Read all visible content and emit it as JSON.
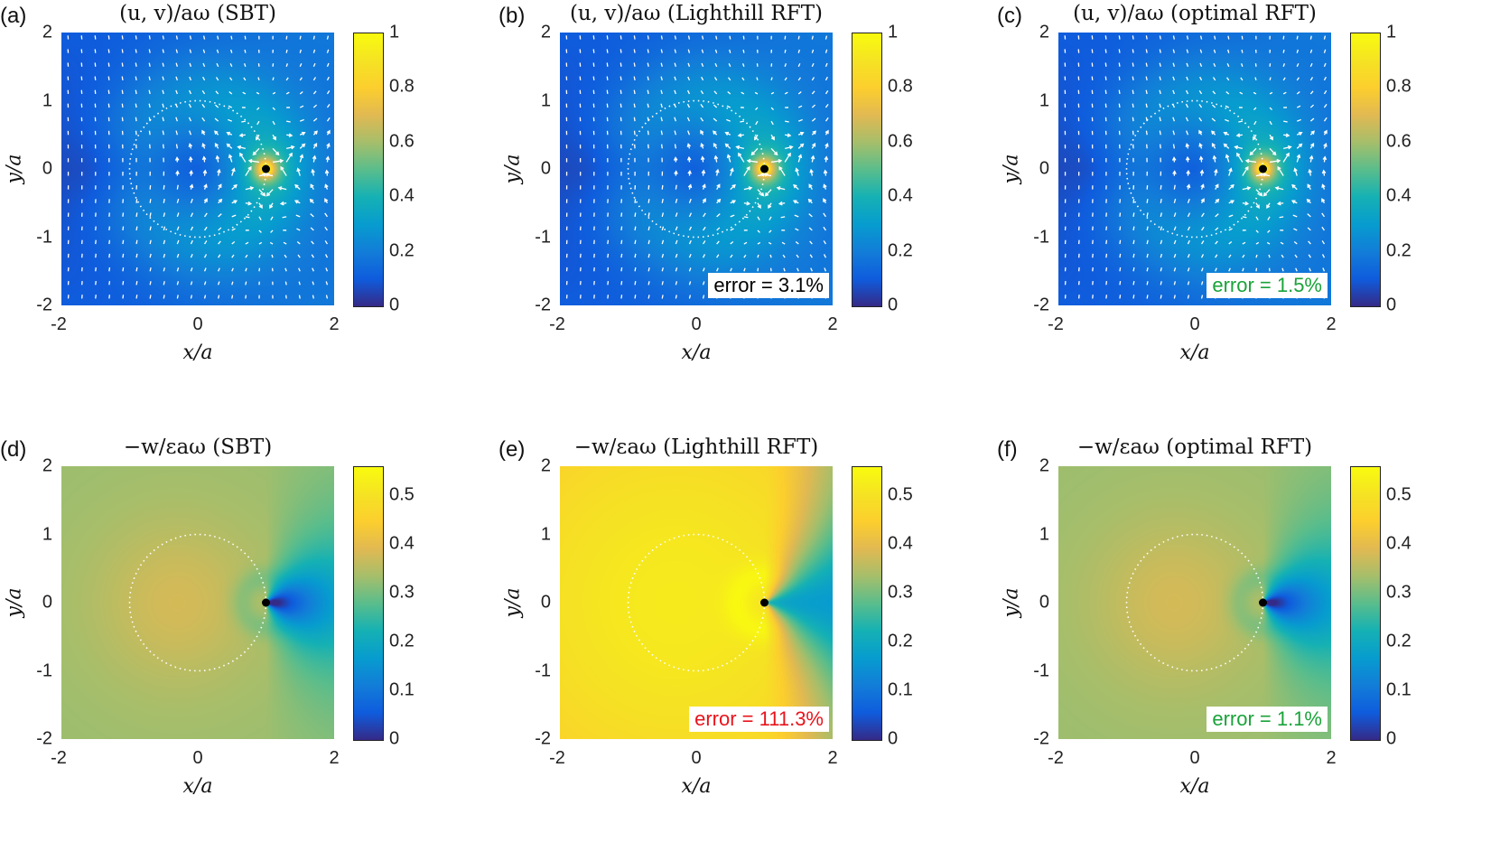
{
  "chart_data": [
    {
      "id": "a",
      "type": "heatmap",
      "letter": "(a)",
      "title": "(u, v)/aω (SBT)",
      "xlabel": "x/a",
      "ylabel": "y/a",
      "xlim": [
        -2,
        2
      ],
      "ylim": [
        -2,
        2
      ],
      "xticks": [
        "-2",
        "0",
        "2"
      ],
      "yticks": [
        "2",
        "1",
        "0",
        "-1",
        "-2"
      ],
      "colorbar": {
        "min": 0,
        "max": 1,
        "ticks": [
          "1",
          "0.8",
          "0.6",
          "0.4",
          "0.2",
          "0"
        ]
      },
      "field": "velocity",
      "quiver": true,
      "singular_point": [
        1,
        0
      ],
      "dotted_circle": {
        "center": [
          0,
          0
        ],
        "radius": 1
      },
      "error_label": null
    },
    {
      "id": "b",
      "type": "heatmap",
      "letter": "(b)",
      "title": "(u, v)/aω (Lighthill RFT)",
      "xlabel": "x/a",
      "ylabel": "y/a",
      "xlim": [
        -2,
        2
      ],
      "ylim": [
        -2,
        2
      ],
      "xticks": [
        "-2",
        "0",
        "2"
      ],
      "yticks": [
        "2",
        "1",
        "0",
        "-1",
        "-2"
      ],
      "colorbar": {
        "min": 0,
        "max": 1,
        "ticks": [
          "1",
          "0.8",
          "0.6",
          "0.4",
          "0.2",
          "0"
        ]
      },
      "field": "velocity",
      "quiver": true,
      "singular_point": [
        1,
        0
      ],
      "dotted_circle": {
        "center": [
          0,
          0
        ],
        "radius": 1
      },
      "error_label": "error = 3.1%",
      "error_color": "#000000"
    },
    {
      "id": "c",
      "type": "heatmap",
      "letter": "(c)",
      "title": "(u, v)/aω (optimal RFT)",
      "xlabel": "x/a",
      "ylabel": "y/a",
      "xlim": [
        -2,
        2
      ],
      "ylim": [
        -2,
        2
      ],
      "xticks": [
        "-2",
        "0",
        "2"
      ],
      "yticks": [
        "2",
        "1",
        "0",
        "-1",
        "-2"
      ],
      "colorbar": {
        "min": 0,
        "max": 1,
        "ticks": [
          "1",
          "0.8",
          "0.6",
          "0.4",
          "0.2",
          "0"
        ]
      },
      "field": "velocity",
      "quiver": true,
      "singular_point": [
        1,
        0
      ],
      "dotted_circle": {
        "center": [
          0,
          0
        ],
        "radius": 1
      },
      "error_label": "error = 1.5%",
      "error_color": "#1aa33a"
    },
    {
      "id": "d",
      "type": "heatmap",
      "letter": "(d)",
      "title": "−w/εaω (SBT)",
      "xlabel": "x/a",
      "ylabel": "y/a",
      "xlim": [
        -2,
        2
      ],
      "ylim": [
        -2,
        2
      ],
      "xticks": [
        "-2",
        "0",
        "2"
      ],
      "yticks": [
        "2",
        "1",
        "0",
        "-1",
        "-2"
      ],
      "colorbar": {
        "min": 0,
        "max": 0.56,
        "ticks": [
          "0.5",
          "0.4",
          "0.3",
          "0.2",
          "0.1",
          "0"
        ]
      },
      "field": "w_sbt",
      "quiver": false,
      "singular_point": [
        1,
        0
      ],
      "dotted_circle": {
        "center": [
          0,
          0
        ],
        "radius": 1
      },
      "error_label": null
    },
    {
      "id": "e",
      "type": "heatmap",
      "letter": "(e)",
      "title": "−w/εaω (Lighthill RFT)",
      "xlabel": "x/a",
      "ylabel": "y/a",
      "xlim": [
        -2,
        2
      ],
      "ylim": [
        -2,
        2
      ],
      "xticks": [
        "-2",
        "0",
        "2"
      ],
      "yticks": [
        "2",
        "1",
        "0",
        "-1",
        "-2"
      ],
      "colorbar": {
        "min": 0,
        "max": 0.56,
        "ticks": [
          "0.5",
          "0.4",
          "0.3",
          "0.2",
          "0.1",
          "0"
        ]
      },
      "field": "w_lighthill",
      "quiver": false,
      "singular_point": [
        1,
        0
      ],
      "dotted_circle": {
        "center": [
          0,
          0
        ],
        "radius": 1
      },
      "error_label": "error = 111.3%",
      "error_color": "#e8141c"
    },
    {
      "id": "f",
      "type": "heatmap",
      "letter": "(f)",
      "title": "−w/εaω (optimal RFT)",
      "xlabel": "x/a",
      "ylabel": "y/a",
      "xlim": [
        -2,
        2
      ],
      "ylim": [
        -2,
        2
      ],
      "xticks": [
        "-2",
        "0",
        "2"
      ],
      "yticks": [
        "2",
        "1",
        "0",
        "-1",
        "-2"
      ],
      "colorbar": {
        "min": 0,
        "max": 0.56,
        "ticks": [
          "0.5",
          "0.4",
          "0.3",
          "0.2",
          "0.1",
          "0"
        ]
      },
      "field": "w_sbt",
      "quiver": false,
      "singular_point": [
        1,
        0
      ],
      "dotted_circle": {
        "center": [
          0,
          0
        ],
        "radius": 1
      },
      "error_label": "error = 1.1%",
      "error_color": "#1aa33a"
    }
  ],
  "colormap": "parula"
}
